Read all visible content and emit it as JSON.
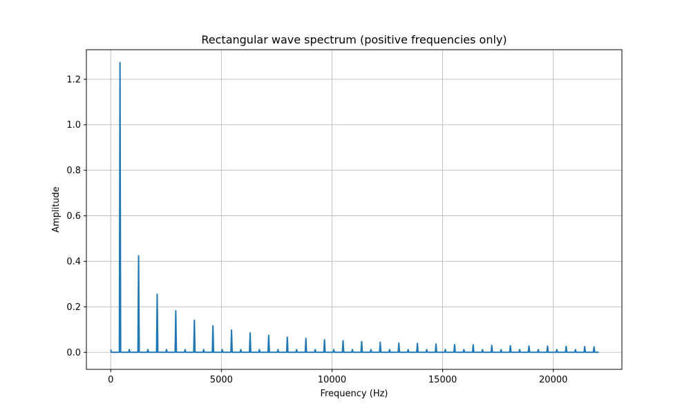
{
  "chart_data": {
    "type": "line",
    "title": "Rectangular wave spectrum (positive frequencies only)",
    "xlabel": "Frequency (Hz)",
    "ylabel": "Amplitude",
    "xlim": [
      -1100,
      23100
    ],
    "ylim": [
      -0.075,
      1.33
    ],
    "xticks": [
      0,
      5000,
      10000,
      15000,
      20000
    ],
    "xtick_labels": [
      "0",
      "5000",
      "10000",
      "15000",
      "20000"
    ],
    "yticks": [
      0.0,
      0.2,
      0.4,
      0.6,
      0.8,
      1.0,
      1.2
    ],
    "ytick_labels": [
      "0.0",
      "0.2",
      "0.4",
      "0.6",
      "0.8",
      "1.0",
      "1.2"
    ],
    "grid": true,
    "line_color": "#1f77b4",
    "series": [
      {
        "frequencies": [
          0,
          420,
          840,
          1260,
          1680,
          2100,
          2520,
          2940,
          3360,
          3780,
          4200,
          4620,
          5040,
          5460,
          5880,
          6300,
          6720,
          7140,
          7560,
          7980,
          8400,
          8820,
          9240,
          9660,
          10080,
          10500,
          10920,
          11340,
          11760,
          12180,
          12600,
          13020,
          13440,
          13860,
          14280,
          14700,
          15120,
          15540,
          15960,
          16380,
          16800,
          17220,
          17640,
          18060,
          18480,
          18900,
          19320,
          19740,
          20160,
          20580,
          21000,
          21420,
          21840
        ],
        "amplitudes": [
          0.012,
          1.273,
          0.012,
          0.424,
          0.012,
          0.255,
          0.012,
          0.182,
          0.012,
          0.141,
          0.012,
          0.116,
          0.012,
          0.098,
          0.012,
          0.085,
          0.012,
          0.075,
          0.012,
          0.067,
          0.012,
          0.061,
          0.012,
          0.055,
          0.012,
          0.051,
          0.012,
          0.047,
          0.012,
          0.044,
          0.012,
          0.041,
          0.012,
          0.039,
          0.012,
          0.036,
          0.012,
          0.034,
          0.012,
          0.033,
          0.012,
          0.031,
          0.012,
          0.029,
          0.012,
          0.028,
          0.012,
          0.027,
          0.012,
          0.026,
          0.012,
          0.025,
          0.024
        ]
      }
    ],
    "x_end": 22050
  }
}
